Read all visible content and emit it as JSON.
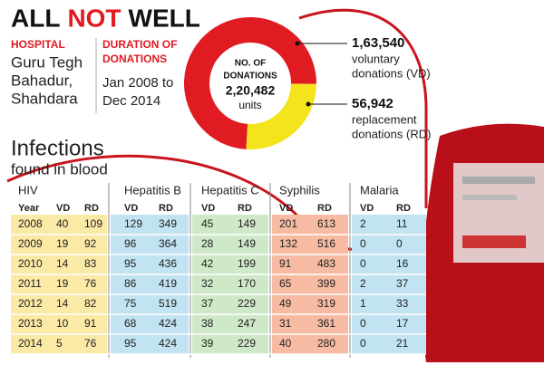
{
  "header": {
    "title_words": [
      "ALL",
      "NOT",
      "WELL"
    ],
    "hospital_label": "HOSPITAL",
    "hospital": [
      "Guru Tegh",
      "Bahadur,",
      "Shahdara"
    ],
    "duration_label": [
      "DURATION OF",
      "DONATIONS"
    ],
    "duration": [
      "Jan 2008 to",
      "Dec 2014"
    ]
  },
  "chart_data": {
    "type": "donut",
    "center_text": [
      "NO. OF",
      "DONATIONS",
      "2,20,482",
      "units"
    ],
    "categories": [
      "voluntary donations (VD)",
      "replacement donations (RD)"
    ],
    "category_lines": [
      [
        "voluntary",
        "donations (VD)"
      ],
      [
        "replacement",
        "donations (RD)"
      ]
    ],
    "values": [
      163540,
      56942
    ],
    "value_labels": [
      "1,63,540",
      "56,942"
    ],
    "colors": [
      "#e01b22",
      "#f4e41c"
    ]
  },
  "table": {
    "title": [
      "Infections",
      "found in blood"
    ],
    "groups": [
      "HIV",
      "Hepatitis B",
      "Hepatitis C",
      "Syphilis",
      "Malaria"
    ],
    "columns": [
      "Year",
      "VD",
      "RD",
      "VD",
      "RD",
      "VD",
      "RD",
      "VD",
      "RD",
      "VD",
      "RD"
    ],
    "rows": [
      [
        2008,
        40,
        109,
        129,
        349,
        45,
        149,
        201,
        613,
        2,
        11
      ],
      [
        2009,
        19,
        92,
        96,
        364,
        28,
        149,
        132,
        516,
        0,
        0
      ],
      [
        2010,
        14,
        83,
        95,
        436,
        42,
        199,
        91,
        483,
        0,
        16
      ],
      [
        2011,
        19,
        76,
        86,
        419,
        32,
        170,
        65,
        399,
        2,
        37
      ],
      [
        2012,
        14,
        82,
        75,
        519,
        37,
        229,
        49,
        319,
        1,
        33
      ],
      [
        2013,
        10,
        91,
        68,
        424,
        38,
        247,
        31,
        361,
        0,
        17
      ],
      [
        2014,
        5,
        76,
        95,
        424,
        39,
        229,
        40,
        280,
        0,
        21
      ]
    ]
  }
}
